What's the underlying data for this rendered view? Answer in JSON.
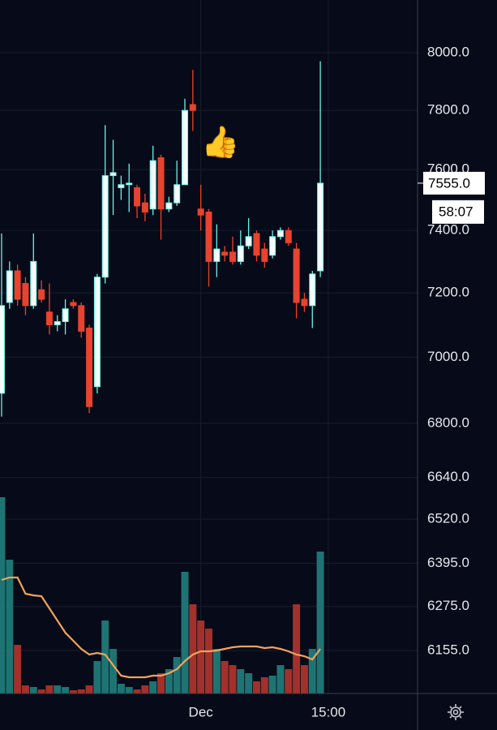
{
  "chart_data": {
    "type": "candlestick",
    "log_scale": true,
    "grid": true,
    "annotation": "👍",
    "countdown": "58:07",
    "last_label": "7555.0",
    "up_color": "#6df2ea",
    "down_color": "#e8432e",
    "volume_up_color": "#1d7473",
    "volume_down_color": "#a3302b",
    "ma_color": "#f2a35a",
    "ylim": [
      6040,
      8187
    ],
    "yticks": [
      {
        "value": 8000,
        "label": "8000.0"
      },
      {
        "value": 7800,
        "label": "7800.0"
      },
      {
        "value": 7600,
        "label": "7600.0"
      },
      {
        "value": 7400,
        "label": "7400.0"
      },
      {
        "value": 7200,
        "label": "7200.0"
      },
      {
        "value": 7000,
        "label": "7000.0"
      },
      {
        "value": 6800,
        "label": "6800.0"
      },
      {
        "value": 6640,
        "label": "6640.0"
      },
      {
        "value": 6520,
        "label": "6520.0"
      },
      {
        "value": 6395,
        "label": "6395.0"
      },
      {
        "value": 6275,
        "label": "6275.0"
      },
      {
        "value": 6155,
        "label": "6155.0"
      }
    ],
    "xlim": [
      -0.2,
      52.2
    ],
    "xticks": [
      {
        "value": 25,
        "label": "Dec"
      },
      {
        "value": 41,
        "label": "15:00"
      }
    ],
    "vlim": [
      0,
      260
    ],
    "open": [
      6890,
      7170,
      7270,
      7230,
      7160,
      7210,
      7140,
      7100,
      7110,
      7170,
      7160,
      7090,
      6910,
      7250,
      7580,
      7540,
      7550,
      7540,
      7490,
      7470,
      7640,
      7470,
      7490,
      7550,
      7820,
      7470,
      7460,
      7300,
      7330,
      7330,
      7300,
      7350,
      7390,
      7340,
      7320,
      7380,
      7400,
      7340,
      7180,
      7160,
      7270
    ],
    "high": [
      7390,
      7300,
      7290,
      7250,
      7390,
      7240,
      7230,
      7130,
      7180,
      7180,
      7170,
      7100,
      7260,
      7750,
      7700,
      7580,
      7620,
      7550,
      7520,
      7680,
      7650,
      7510,
      7630,
      7840,
      7940,
      7550,
      7470,
      7420,
      7350,
      7380,
      7400,
      7440,
      7400,
      7360,
      7400,
      7410,
      7410,
      7360,
      7200,
      7270,
      7970
    ],
    "low": [
      6820,
      7150,
      7160,
      7130,
      7150,
      7170,
      7070,
      7080,
      7070,
      7150,
      7060,
      6830,
      6890,
      7230,
      7450,
      7500,
      7460,
      7440,
      7430,
      7450,
      7370,
      7460,
      7480,
      7550,
      7730,
      7400,
      7220,
      7250,
      7300,
      7290,
      7290,
      7340,
      7300,
      7280,
      7310,
      7370,
      7350,
      7120,
      7140,
      7090,
      7250
    ],
    "close": [
      7160,
      7270,
      7180,
      7160,
      7300,
      7180,
      7100,
      7110,
      7150,
      7160,
      7080,
      6850,
      7250,
      7580,
      7590,
      7550,
      7555,
      7480,
      7460,
      7630,
      7470,
      7490,
      7550,
      7800,
      7800,
      7450,
      7300,
      7340,
      7320,
      7300,
      7350,
      7380,
      7320,
      7300,
      7380,
      7400,
      7360,
      7170,
      7160,
      7260,
      7555
    ],
    "volume": [
      242,
      165,
      60,
      10,
      8,
      5,
      10,
      10,
      8,
      4,
      5,
      10,
      40,
      90,
      55,
      12,
      8,
      5,
      10,
      15,
      25,
      30,
      45,
      150,
      110,
      90,
      80,
      55,
      40,
      35,
      30,
      25,
      15,
      20,
      22,
      35,
      30,
      110,
      35,
      55,
      175
    ],
    "volume_ma": [
      140,
      143,
      143,
      123,
      121,
      120,
      105,
      90,
      75,
      65,
      55,
      48,
      50,
      48,
      35,
      22,
      20,
      20,
      20,
      22,
      22,
      25,
      30,
      40,
      48,
      52,
      52,
      53,
      55,
      57,
      58,
      58,
      58,
      56,
      57,
      55,
      52,
      48,
      46,
      42,
      55
    ]
  }
}
